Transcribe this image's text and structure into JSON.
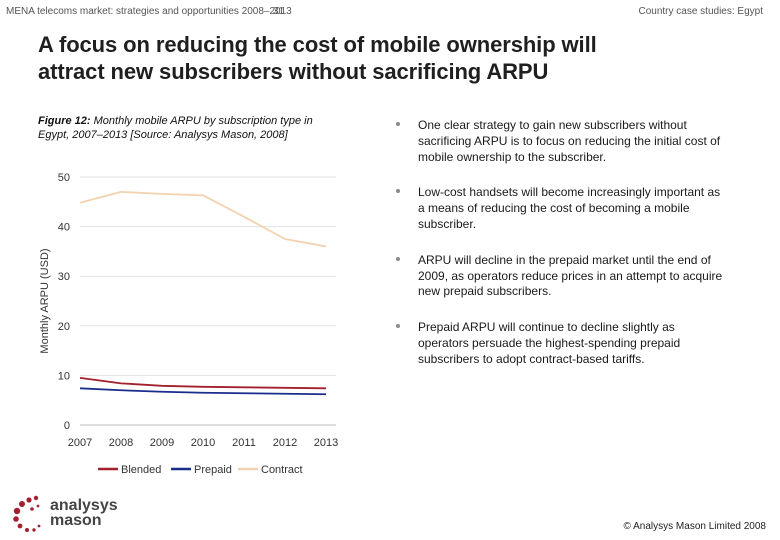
{
  "header": {
    "left": "MENA telecoms market: strategies and opportunities 2008–2013",
    "page_number": "31",
    "right": "Country case studies: Egypt"
  },
  "title": {
    "line1": "A focus on reducing the cost of mobile ownership will",
    "line2": "attract new subscribers without sacrificing ARPU"
  },
  "figure": {
    "label": "Figure 12:",
    "caption_rest": " Monthly mobile ARPU by subscription type in Egypt, 2007–2013 [Source: Analysys Mason, 2008]"
  },
  "chart_data": {
    "type": "line",
    "title": "",
    "xlabel": "",
    "ylabel": "Monthly ARPU (USD)",
    "x": [
      "2007",
      "2008",
      "2009",
      "2010",
      "2011",
      "2012",
      "2013"
    ],
    "ylim": [
      0,
      50
    ],
    "yticks": [
      "0",
      "10",
      "20",
      "30",
      "40",
      "50"
    ],
    "grid": true,
    "legend_position": "bottom",
    "series": [
      {
        "name": "Blended",
        "color": "#a3202e",
        "values": [
          9.5,
          8.4,
          7.9,
          7.7,
          7.6,
          7.5,
          7.4
        ]
      },
      {
        "name": "Prepaid",
        "color": "#1a2d8c",
        "values": [
          7.4,
          7.0,
          6.7,
          6.5,
          6.4,
          6.3,
          6.2
        ]
      },
      {
        "name": "Contract",
        "color": "#f2d2b0",
        "values": [
          44.8,
          47.0,
          46.6,
          46.3,
          42.0,
          37.5,
          36.0
        ]
      }
    ]
  },
  "bullets": [
    "One clear strategy to gain new subscribers without sacrificing ARPU is to focus on reducing the initial cost of mobile ownership to the subscriber.",
    "Low-cost handsets will become increasingly important as a means of reducing the cost of becoming a mobile subscriber.",
    "ARPU will decline in the prepaid market until the end of 2009, as operators reduce prices in an attempt to acquire new prepaid subscribers.",
    "Prepaid ARPU will continue to decline slightly as operators persuade the highest-spending prepaid subscribers to adopt contract-based tariffs."
  ],
  "logo": {
    "line1": "analysys",
    "line2": "mason",
    "color": "#a3202e"
  },
  "footer": {
    "copyright": "© Analysys Mason Limited 2008"
  }
}
